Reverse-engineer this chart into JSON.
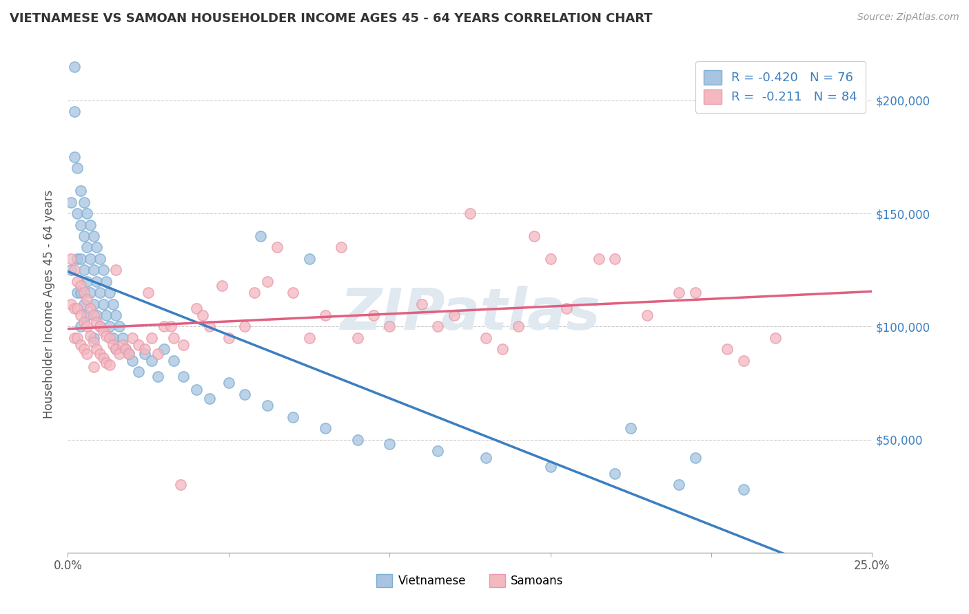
{
  "title": "VIETNAMESE VS SAMOAN HOUSEHOLDER INCOME AGES 45 - 64 YEARS CORRELATION CHART",
  "source": "Source: ZipAtlas.com",
  "ylabel": "Householder Income Ages 45 - 64 years",
  "xlim": [
    0.0,
    0.25
  ],
  "ylim": [
    0,
    220000
  ],
  "ytick_positions": [
    50000,
    100000,
    150000,
    200000
  ],
  "ytick_labels": [
    "$50,000",
    "$100,000",
    "$150,000",
    "$200,000"
  ],
  "watermark": "ZIPatlas",
  "blue_R": -0.42,
  "blue_N": 76,
  "pink_R": -0.211,
  "pink_N": 84,
  "blue_color": "#a8c4e0",
  "pink_color": "#f4b8c1",
  "blue_edge_color": "#7aafd4",
  "pink_edge_color": "#e89aaa",
  "blue_line_color": "#3a7fc1",
  "pink_line_color": "#e06080",
  "title_color": "#333333",
  "legend_label_blue": "Vietnamese",
  "legend_label_pink": "Samoans",
  "blue_scatter": {
    "x": [
      0.001,
      0.001,
      0.002,
      0.002,
      0.002,
      0.003,
      0.003,
      0.003,
      0.003,
      0.004,
      0.004,
      0.004,
      0.004,
      0.004,
      0.005,
      0.005,
      0.005,
      0.005,
      0.006,
      0.006,
      0.006,
      0.006,
      0.007,
      0.007,
      0.007,
      0.008,
      0.008,
      0.008,
      0.008,
      0.009,
      0.009,
      0.009,
      0.01,
      0.01,
      0.01,
      0.011,
      0.011,
      0.012,
      0.012,
      0.013,
      0.013,
      0.014,
      0.014,
      0.015,
      0.015,
      0.016,
      0.017,
      0.018,
      0.019,
      0.02,
      0.022,
      0.024,
      0.026,
      0.028,
      0.03,
      0.033,
      0.036,
      0.04,
      0.044,
      0.05,
      0.055,
      0.062,
      0.07,
      0.08,
      0.09,
      0.1,
      0.115,
      0.13,
      0.15,
      0.17,
      0.19,
      0.21,
      0.175,
      0.195,
      0.06,
      0.075
    ],
    "y": [
      155000,
      125000,
      175000,
      195000,
      215000,
      170000,
      150000,
      130000,
      115000,
      160000,
      145000,
      130000,
      115000,
      100000,
      155000,
      140000,
      125000,
      110000,
      150000,
      135000,
      120000,
      105000,
      145000,
      130000,
      115000,
      140000,
      125000,
      110000,
      95000,
      135000,
      120000,
      105000,
      130000,
      115000,
      100000,
      125000,
      110000,
      120000,
      105000,
      115000,
      100000,
      110000,
      95000,
      105000,
      90000,
      100000,
      95000,
      90000,
      88000,
      85000,
      80000,
      88000,
      85000,
      78000,
      90000,
      85000,
      78000,
      72000,
      68000,
      75000,
      70000,
      65000,
      60000,
      55000,
      50000,
      48000,
      45000,
      42000,
      38000,
      35000,
      30000,
      28000,
      55000,
      42000,
      140000,
      130000
    ]
  },
  "pink_scatter": {
    "x": [
      0.001,
      0.001,
      0.002,
      0.002,
      0.002,
      0.003,
      0.003,
      0.003,
      0.004,
      0.004,
      0.004,
      0.005,
      0.005,
      0.005,
      0.006,
      0.006,
      0.006,
      0.007,
      0.007,
      0.008,
      0.008,
      0.008,
      0.009,
      0.009,
      0.01,
      0.01,
      0.011,
      0.011,
      0.012,
      0.012,
      0.013,
      0.013,
      0.014,
      0.015,
      0.016,
      0.017,
      0.018,
      0.019,
      0.02,
      0.022,
      0.024,
      0.026,
      0.028,
      0.03,
      0.033,
      0.036,
      0.04,
      0.044,
      0.05,
      0.055,
      0.062,
      0.07,
      0.08,
      0.09,
      0.1,
      0.11,
      0.12,
      0.13,
      0.14,
      0.155,
      0.165,
      0.18,
      0.195,
      0.21,
      0.22,
      0.17,
      0.15,
      0.135,
      0.115,
      0.095,
      0.075,
      0.058,
      0.042,
      0.032,
      0.025,
      0.015,
      0.19,
      0.205,
      0.145,
      0.125,
      0.085,
      0.065,
      0.048,
      0.035
    ],
    "y": [
      130000,
      110000,
      125000,
      108000,
      95000,
      120000,
      108000,
      95000,
      118000,
      105000,
      92000,
      115000,
      102000,
      90000,
      112000,
      100000,
      88000,
      108000,
      96000,
      105000,
      93000,
      82000,
      102000,
      90000,
      100000,
      88000,
      98000,
      86000,
      96000,
      84000,
      95000,
      83000,
      92000,
      90000,
      88000,
      92000,
      90000,
      88000,
      95000,
      92000,
      90000,
      95000,
      88000,
      100000,
      95000,
      92000,
      108000,
      100000,
      95000,
      100000,
      120000,
      115000,
      105000,
      95000,
      100000,
      110000,
      105000,
      95000,
      100000,
      108000,
      130000,
      105000,
      115000,
      85000,
      95000,
      130000,
      130000,
      90000,
      100000,
      105000,
      95000,
      115000,
      105000,
      100000,
      115000,
      125000,
      115000,
      90000,
      140000,
      150000,
      135000,
      135000,
      118000,
      30000
    ]
  }
}
